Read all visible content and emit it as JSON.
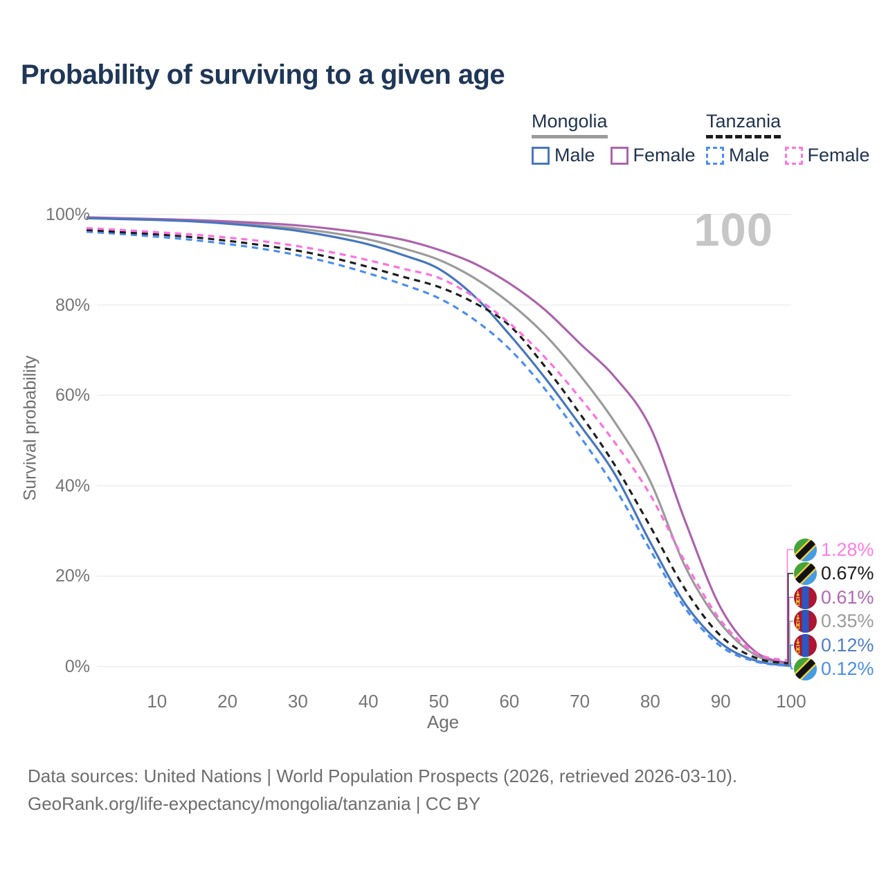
{
  "header": {
    "title": "Probability of surviving to a given age"
  },
  "watermark": {
    "value": "100"
  },
  "legend": {
    "groups": [
      {
        "country": "Mongolia",
        "line_style": "solid",
        "line_color": "#9b9b9b",
        "items": [
          {
            "label": "Male",
            "color": "#4677be"
          },
          {
            "label": "Female",
            "color": "#ad64ad"
          }
        ]
      },
      {
        "country": "Tanzania",
        "line_style": "dashed",
        "line_color": "#1c1c1c",
        "items": [
          {
            "label": "Male",
            "color": "#4a8ef0"
          },
          {
            "label": "Female",
            "color": "#ff74df"
          }
        ]
      }
    ]
  },
  "chart_data": {
    "type": "line",
    "title": "Probability of surviving to a given age",
    "xlabel": "Age",
    "ylabel": "Survival probability",
    "xlim": [
      0,
      100
    ],
    "ylim": [
      0,
      100
    ],
    "grid": "horizontal",
    "x": [
      0,
      5,
      10,
      15,
      20,
      25,
      30,
      35,
      40,
      45,
      50,
      55,
      60,
      65,
      70,
      75,
      80,
      85,
      90,
      95,
      100
    ],
    "x_ticks": [
      10,
      20,
      30,
      40,
      50,
      60,
      70,
      80,
      90,
      100
    ],
    "y_ticks": [
      {
        "v": 0,
        "label": "0%"
      },
      {
        "v": 20,
        "label": "20%"
      },
      {
        "v": 40,
        "label": "40%"
      },
      {
        "v": 60,
        "label": "60%"
      },
      {
        "v": 80,
        "label": "80%"
      },
      {
        "v": 100,
        "label": "100%"
      }
    ],
    "series": [
      {
        "id": "mn_total",
        "name": "Mongolia",
        "country": "Mongolia",
        "sex": "Both",
        "color": "#9b9b9b",
        "dash": false,
        "values": [
          99.3,
          99.1,
          98.9,
          98.6,
          98.2,
          97.6,
          96.9,
          95.9,
          94.5,
          92.5,
          90.0,
          86.0,
          80.5,
          73.5,
          64.5,
          54.0,
          41.0,
          22.0,
          9.5,
          2.5,
          0.35
        ]
      },
      {
        "id": "mn_female",
        "name": "Mongolia Female",
        "country": "Mongolia",
        "sex": "Female",
        "color": "#ad64ad",
        "dash": false,
        "values": [
          99.4,
          99.2,
          99.0,
          98.8,
          98.5,
          98.1,
          97.6,
          96.8,
          95.8,
          94.4,
          92.2,
          89.2,
          84.8,
          79.0,
          71.5,
          64.0,
          53.0,
          32.0,
          13.0,
          3.2,
          0.61
        ]
      },
      {
        "id": "mn_male",
        "name": "Mongolia Male",
        "country": "Mongolia",
        "sex": "Male",
        "color": "#4677be",
        "dash": false,
        "values": [
          99.2,
          99.0,
          98.8,
          98.5,
          98.0,
          97.3,
          96.4,
          95.1,
          93.4,
          91.0,
          88.0,
          82.0,
          73.5,
          64.0,
          53.5,
          42.5,
          27.5,
          13.8,
          5.2,
          1.3,
          0.12
        ]
      },
      {
        "id": "tz_male",
        "name": "Tanzania Male",
        "country": "Tanzania",
        "sex": "Male",
        "color": "#4a8ef0",
        "dash": true,
        "values": [
          96.2,
          95.7,
          95.1,
          94.4,
          93.5,
          92.4,
          91.0,
          89.2,
          87.0,
          84.5,
          81.5,
          76.8,
          70.3,
          61.5,
          51.0,
          39.5,
          25.8,
          12.8,
          4.5,
          1.1,
          0.12
        ]
      },
      {
        "id": "tz_total",
        "name": "Tanzania",
        "country": "Tanzania",
        "sex": "Both",
        "color": "#1f1f1f",
        "dash": true,
        "values": [
          96.6,
          96.1,
          95.6,
          95.0,
          94.2,
          93.2,
          92.0,
          90.4,
          88.4,
          86.2,
          84.0,
          80.5,
          75.5,
          66.5,
          56.0,
          44.5,
          31.0,
          17.0,
          6.8,
          1.9,
          0.67
        ]
      },
      {
        "id": "tz_female",
        "name": "Tanzania Female",
        "country": "Tanzania",
        "sex": "Female",
        "color": "#ff70df",
        "dash": true,
        "values": [
          97.0,
          96.6,
          96.1,
          95.6,
          94.9,
          94.1,
          93.0,
          91.6,
          89.9,
          88.0,
          86.0,
          81.8,
          76.0,
          68.5,
          59.5,
          49.5,
          38.0,
          23.0,
          10.2,
          3.0,
          1.28
        ]
      }
    ],
    "end_labels": [
      {
        "value": "1.28%",
        "series": "tz_female",
        "flag": "tanzania",
        "color": "#ff7ee2"
      },
      {
        "value": "0.67%",
        "series": "tz_total",
        "flag": "tanzania",
        "color": "#1c1c1c"
      },
      {
        "value": "0.61%",
        "series": "mn_female",
        "flag": "mongolia",
        "color": "#b168b1"
      },
      {
        "value": "0.35%",
        "series": "mn_total",
        "flag": "mongolia",
        "color": "#9b9b9b"
      },
      {
        "value": "0.12%",
        "series": "mn_male",
        "flag": "mongolia",
        "color": "#4d7ec6"
      },
      {
        "value": "0.12%",
        "series": "tz_male",
        "flag": "tanzania",
        "color": "#4a90e2"
      }
    ]
  },
  "footer": {
    "line1": "Data sources: United Nations | World Population Prospects (2026, retrieved 2026-03-10).",
    "line2": "GeoRank.org/life-expectancy/mongolia/tanzania | CC BY"
  }
}
